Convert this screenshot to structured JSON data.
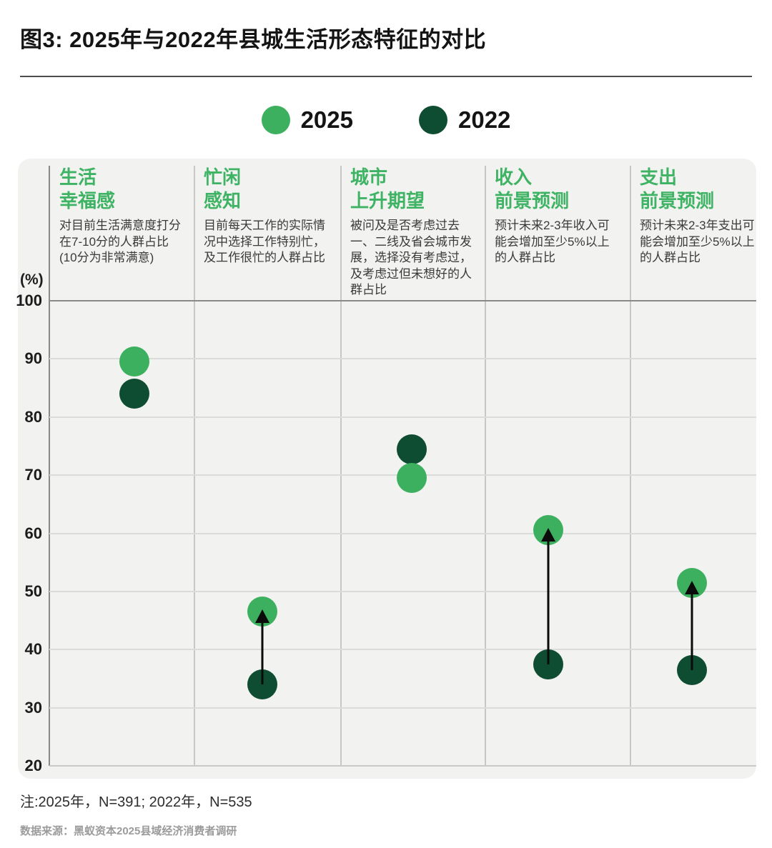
{
  "title": "图3: 2025年与2022年县城生活形态特征的对比",
  "legend": {
    "items": [
      {
        "label": "2025",
        "color": "#3cb05e"
      },
      {
        "label": "2022",
        "color": "#0e4d31"
      }
    ]
  },
  "axis": {
    "unit": "(%)",
    "ticks": [
      100,
      90,
      80,
      70,
      60,
      50,
      40,
      30,
      20
    ],
    "ymin": 20,
    "ymax": 100
  },
  "colors": {
    "green_2025": "#3cb05e",
    "green_2022": "#0e4d31",
    "header_green": "#3eb364",
    "arrow_black": "#0b0b0b"
  },
  "chart_data": {
    "type": "scatter",
    "subtype": "dumbbell-dot-comparison",
    "grid": true,
    "legend_position": "top",
    "y_unit": "(%)",
    "ylim": [
      20,
      100
    ],
    "categories": [
      {
        "title": "生活\n幸福感",
        "description": "对目前生活满意度打分在7-10分的人群占比(10分为非常满意)"
      },
      {
        "title": "忙闲\n感知",
        "description": "目前每天工作的实际情况中选择工作特别忙，及工作很忙的人群占比"
      },
      {
        "title": "城市\n上升期望",
        "description": "被问及是否考虑过去一、二线及省会城市发展，选择没有考虑过，及考虑过但未想好的人群占比"
      },
      {
        "title": "收入\n前景预测",
        "description": "预计未来2-3年收入可能会增加至少5%以上的人群占比"
      },
      {
        "title": "支出\n前景预测",
        "description": "预计未来2-3年支出可能会增加至少5%以上的人群占比"
      }
    ],
    "series": [
      {
        "name": "2025",
        "color": "#3cb05e",
        "values": [
          89.5,
          46.5,
          69.5,
          60.5,
          51.5
        ]
      },
      {
        "name": "2022",
        "color": "#0e4d31",
        "values": [
          84,
          34,
          74.5,
          37.5,
          36.5
        ]
      }
    ],
    "arrows_2022_to_2025": [
      false,
      true,
      false,
      true,
      true
    ]
  },
  "notes": {
    "sample_note": "注:2025年，N=391; 2022年，N=535",
    "source": "数据来源：黑蚁资本2025县域经济消费者调研"
  }
}
